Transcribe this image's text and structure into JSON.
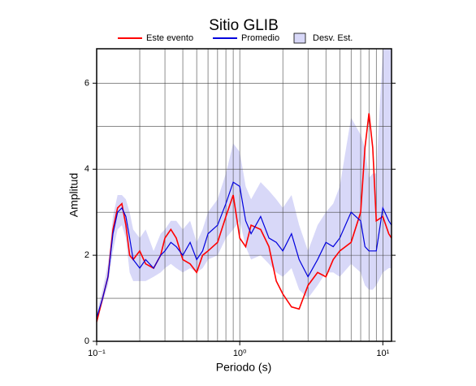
{
  "chart_data": {
    "type": "line",
    "title": "Sitio GLIB",
    "x_label": "Periodo (s)",
    "y_label": "Amplitud",
    "x_log": true,
    "x": [
      0.1,
      0.11,
      0.12,
      0.13,
      0.14,
      0.15,
      0.16,
      0.17,
      0.18,
      0.2,
      0.22,
      0.25,
      0.28,
      0.3,
      0.33,
      0.36,
      0.4,
      0.45,
      0.5,
      0.55,
      0.6,
      0.7,
      0.8,
      0.9,
      1.0,
      1.1,
      1.2,
      1.4,
      1.6,
      1.8,
      2.0,
      2.3,
      2.6,
      3.0,
      3.5,
      4.0,
      4.5,
      5,
      6,
      7,
      7.5,
      8,
      8.5,
      9,
      10,
      11,
      11.5
    ],
    "series": [
      {
        "name": "Este evento",
        "color": "#ff0000",
        "values": [
          0.45,
          1.0,
          1.5,
          2.6,
          3.1,
          3.2,
          2.7,
          2.0,
          1.9,
          2.1,
          1.8,
          1.7,
          2.0,
          2.4,
          2.6,
          2.4,
          1.9,
          1.8,
          1.6,
          2.0,
          2.1,
          2.3,
          2.9,
          3.4,
          2.4,
          2.2,
          2.7,
          2.6,
          2.2,
          1.4,
          1.1,
          0.8,
          0.75,
          1.3,
          1.6,
          1.5,
          1.9,
          2.1,
          2.3,
          3.0,
          4.5,
          5.3,
          4.5,
          2.8,
          2.9,
          2.5,
          2.4
        ]
      },
      {
        "name": "Promedio",
        "color": "#0000dd",
        "values": [
          0.55,
          1.0,
          1.5,
          2.5,
          3.0,
          3.1,
          2.9,
          2.4,
          1.9,
          1.7,
          1.9,
          1.7,
          2.0,
          2.1,
          2.3,
          2.2,
          2.0,
          2.3,
          1.9,
          2.1,
          2.5,
          2.7,
          3.2,
          3.7,
          3.6,
          2.8,
          2.5,
          2.9,
          2.4,
          2.3,
          2.1,
          2.5,
          1.9,
          1.5,
          1.9,
          2.3,
          2.2,
          2.4,
          3.0,
          2.8,
          2.2,
          2.1,
          2.1,
          2.1,
          3.1,
          2.8,
          2.7
        ]
      }
    ],
    "band": {
      "name": "Desv. Est.",
      "color": "#d8d8f8",
      "lower": [
        0.45,
        0.9,
        1.3,
        2.1,
        2.6,
        2.7,
        2.4,
        1.6,
        1.4,
        1.4,
        1.4,
        1.5,
        1.6,
        1.7,
        1.8,
        1.7,
        1.6,
        1.7,
        1.6,
        1.7,
        1.9,
        2.0,
        2.4,
        2.6,
        2.8,
        2.2,
        1.9,
        2.0,
        1.8,
        1.6,
        1.5,
        1.7,
        1.2,
        1.0,
        1.3,
        1.6,
        1.6,
        1.5,
        1.8,
        1.6,
        1.3,
        1.2,
        1.2,
        1.3,
        1.6,
        1.7,
        1.7
      ],
      "upper": [
        0.65,
        1.2,
        1.8,
        2.9,
        3.4,
        3.4,
        3.3,
        3.0,
        2.6,
        2.4,
        2.6,
        2.1,
        2.5,
        2.6,
        2.8,
        2.8,
        2.6,
        2.8,
        2.3,
        2.6,
        3.0,
        3.3,
        3.9,
        4.6,
        4.4,
        3.6,
        3.3,
        3.7,
        3.5,
        3.3,
        3.1,
        3.4,
        2.7,
        2.1,
        2.7,
        3.0,
        3.2,
        3.6,
        5.2,
        4.8,
        4.5,
        3.8,
        3.9,
        3.9,
        6.8,
        6.8,
        6.8
      ]
    },
    "xlim": [
      0.1,
      11.5
    ],
    "ylim": [
      0,
      6.8
    ],
    "xticks": [
      {
        "value": 0.1,
        "label": "10⁻¹"
      },
      {
        "value": 1,
        "label": "10⁰"
      },
      {
        "value": 10,
        "label": "10¹"
      }
    ],
    "yticks": [
      0,
      2,
      4,
      6
    ],
    "xgrid": [
      0.2,
      0.3,
      0.4,
      0.5,
      0.6,
      0.7,
      0.8,
      0.9,
      1,
      2,
      3,
      4,
      5,
      6,
      7,
      8,
      9,
      10
    ],
    "ygrid": [
      1,
      2,
      3,
      4,
      5,
      6
    ],
    "legend": "top"
  }
}
